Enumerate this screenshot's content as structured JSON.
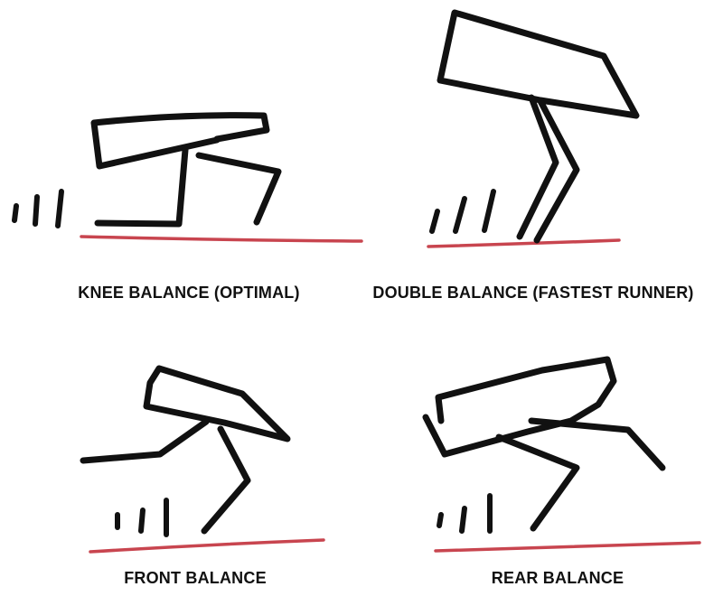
{
  "colors": {
    "ink": "#111111",
    "ground": "#c8454f",
    "background": "#ffffff"
  },
  "panels": [
    {
      "id": "knee",
      "caption": "KNEE BALANCE (OPTIMAL)"
    },
    {
      "id": "double",
      "caption": "DOUBLE BALANCE (FASTEST RUNNER)"
    },
    {
      "id": "front",
      "caption": "FRONT BALANCE"
    },
    {
      "id": "rear",
      "caption": "REAR BALANCE"
    }
  ]
}
